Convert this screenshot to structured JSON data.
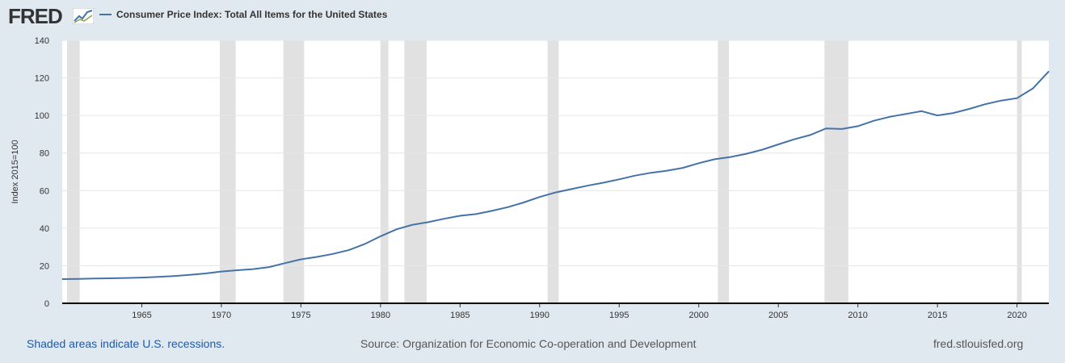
{
  "brand": {
    "logo_text": "FRED",
    "logo_icon": "trend-graph-icon"
  },
  "legend": {
    "label": "Consumer Price Index: Total All Items for the United States",
    "color": "#4572a7"
  },
  "footer": {
    "recessions_note": "Shaded areas indicate U.S. recessions.",
    "source": "Source: Organization for Economic Co-operation and Development",
    "site": "fred.stlouisfed.org"
  },
  "colors": {
    "background": "#e1e9f0",
    "plot": "#ffffff",
    "line": "#4572a7",
    "recession": "#e1e1e1",
    "grid": "#e6e6e6"
  },
  "chart_data": {
    "type": "line",
    "ylabel": "Index 2015=100",
    "xlabel": "",
    "xlim": [
      1960,
      2022
    ],
    "ylim": [
      0,
      140
    ],
    "yticks": [
      0,
      20,
      40,
      60,
      80,
      100,
      120,
      140
    ],
    "xticks": [
      1965,
      1970,
      1975,
      1980,
      1985,
      1990,
      1995,
      2000,
      2005,
      2010,
      2015,
      2020
    ],
    "grid": true,
    "series": [
      {
        "name": "Consumer Price Index: Total All Items for the United States",
        "x": [
          1960,
          1961,
          1962,
          1963,
          1964,
          1965,
          1966,
          1967,
          1968,
          1969,
          1970,
          1971,
          1972,
          1973,
          1974,
          1975,
          1976,
          1977,
          1978,
          1979,
          1980,
          1981,
          1982,
          1983,
          1984,
          1985,
          1986,
          1987,
          1988,
          1989,
          1990,
          1991,
          1992,
          1993,
          1994,
          1995,
          1996,
          1997,
          1998,
          1999,
          2000,
          2001,
          2002,
          2003,
          2004,
          2005,
          2006,
          2007,
          2008,
          2009,
          2010,
          2011,
          2012,
          2013,
          2014,
          2015,
          2016,
          2017,
          2018,
          2019,
          2020,
          2021,
          2022
        ],
        "values": [
          12.9,
          13.0,
          13.2,
          13.3,
          13.5,
          13.7,
          14.1,
          14.5,
          15.1,
          15.9,
          16.9,
          17.6,
          18.2,
          19.3,
          21.4,
          23.4,
          24.7,
          26.3,
          28.3,
          31.5,
          35.7,
          39.4,
          41.8,
          43.2,
          45.0,
          46.6,
          47.5,
          49.2,
          51.2,
          53.7,
          56.6,
          59.0,
          60.8,
          62.6,
          64.2,
          66.0,
          68.0,
          69.5,
          70.6,
          72.1,
          74.6,
          76.7,
          77.9,
          79.6,
          81.8,
          84.6,
          87.3,
          89.6,
          93.1,
          92.8,
          94.3,
          97.2,
          99.3,
          100.8,
          102.3,
          100.0,
          101.3,
          103.5,
          106.0,
          107.9,
          109.2,
          114.4,
          123.5
        ]
      }
    ],
    "recessions": [
      {
        "start": 1960.3,
        "end": 1961.1
      },
      {
        "start": 1969.9,
        "end": 1970.9
      },
      {
        "start": 1973.9,
        "end": 1975.2
      },
      {
        "start": 1980.0,
        "end": 1980.5
      },
      {
        "start": 1981.5,
        "end": 1982.9
      },
      {
        "start": 1990.5,
        "end": 1991.2
      },
      {
        "start": 2001.2,
        "end": 2001.9
      },
      {
        "start": 2007.9,
        "end": 2009.4
      },
      {
        "start": 2020.0,
        "end": 2020.3
      }
    ]
  }
}
